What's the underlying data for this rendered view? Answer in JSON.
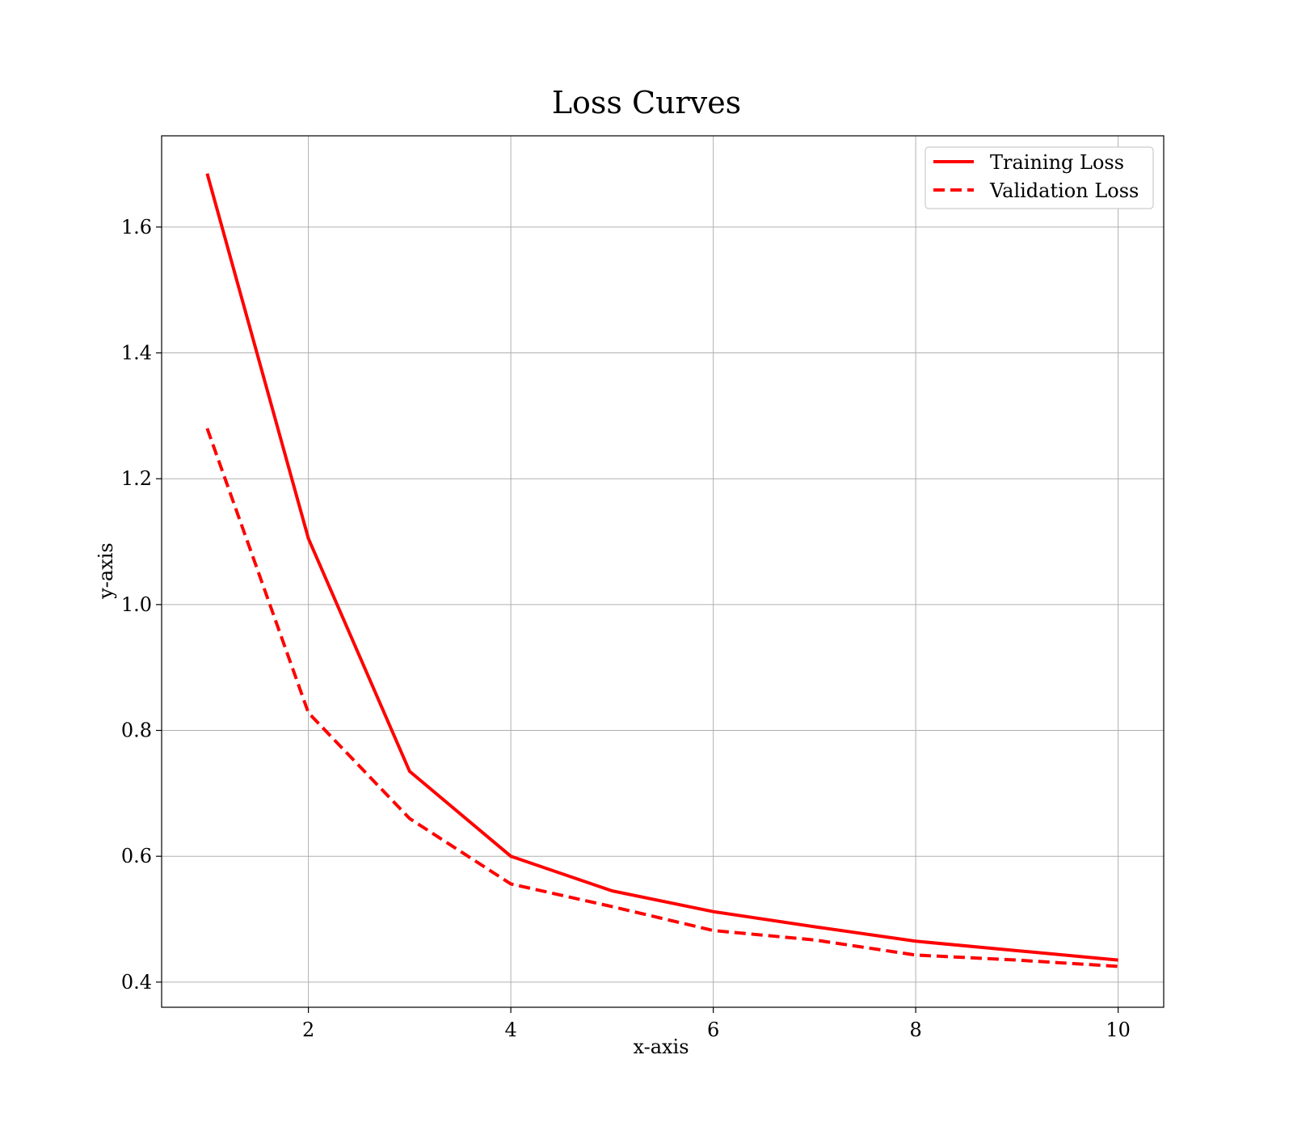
{
  "chart_data": {
    "type": "line",
    "title": "Loss Curves",
    "xlabel": "x-axis",
    "ylabel": "y-axis",
    "xlim": [
      0.55,
      10.45
    ],
    "ylim": [
      0.36,
      1.745
    ],
    "xticks": [
      2,
      4,
      6,
      8,
      10
    ],
    "yticks": [
      0.4,
      0.6,
      0.8,
      1.0,
      1.2,
      1.4,
      1.6
    ],
    "xtick_labels": [
      "2",
      "4",
      "6",
      "8",
      "10"
    ],
    "ytick_labels": [
      "0.4",
      "0.6",
      "0.8",
      "1.0",
      "1.2",
      "1.4",
      "1.6"
    ],
    "grid": true,
    "legend_position": "top-right",
    "x": [
      1,
      2,
      3,
      4,
      5,
      6,
      7,
      8,
      9,
      10
    ],
    "series": [
      {
        "name": "Training Loss",
        "values": [
          1.685,
          1.105,
          0.735,
          0.6,
          0.545,
          0.512,
          0.488,
          0.465,
          0.45,
          0.435
        ],
        "color": "#ff0000",
        "style": "solid"
      },
      {
        "name": "Validation Loss",
        "values": [
          1.28,
          0.828,
          0.66,
          0.556,
          0.52,
          0.482,
          0.467,
          0.443,
          0.435,
          0.425
        ],
        "color": "#ff0000",
        "style": "dashed"
      }
    ]
  }
}
